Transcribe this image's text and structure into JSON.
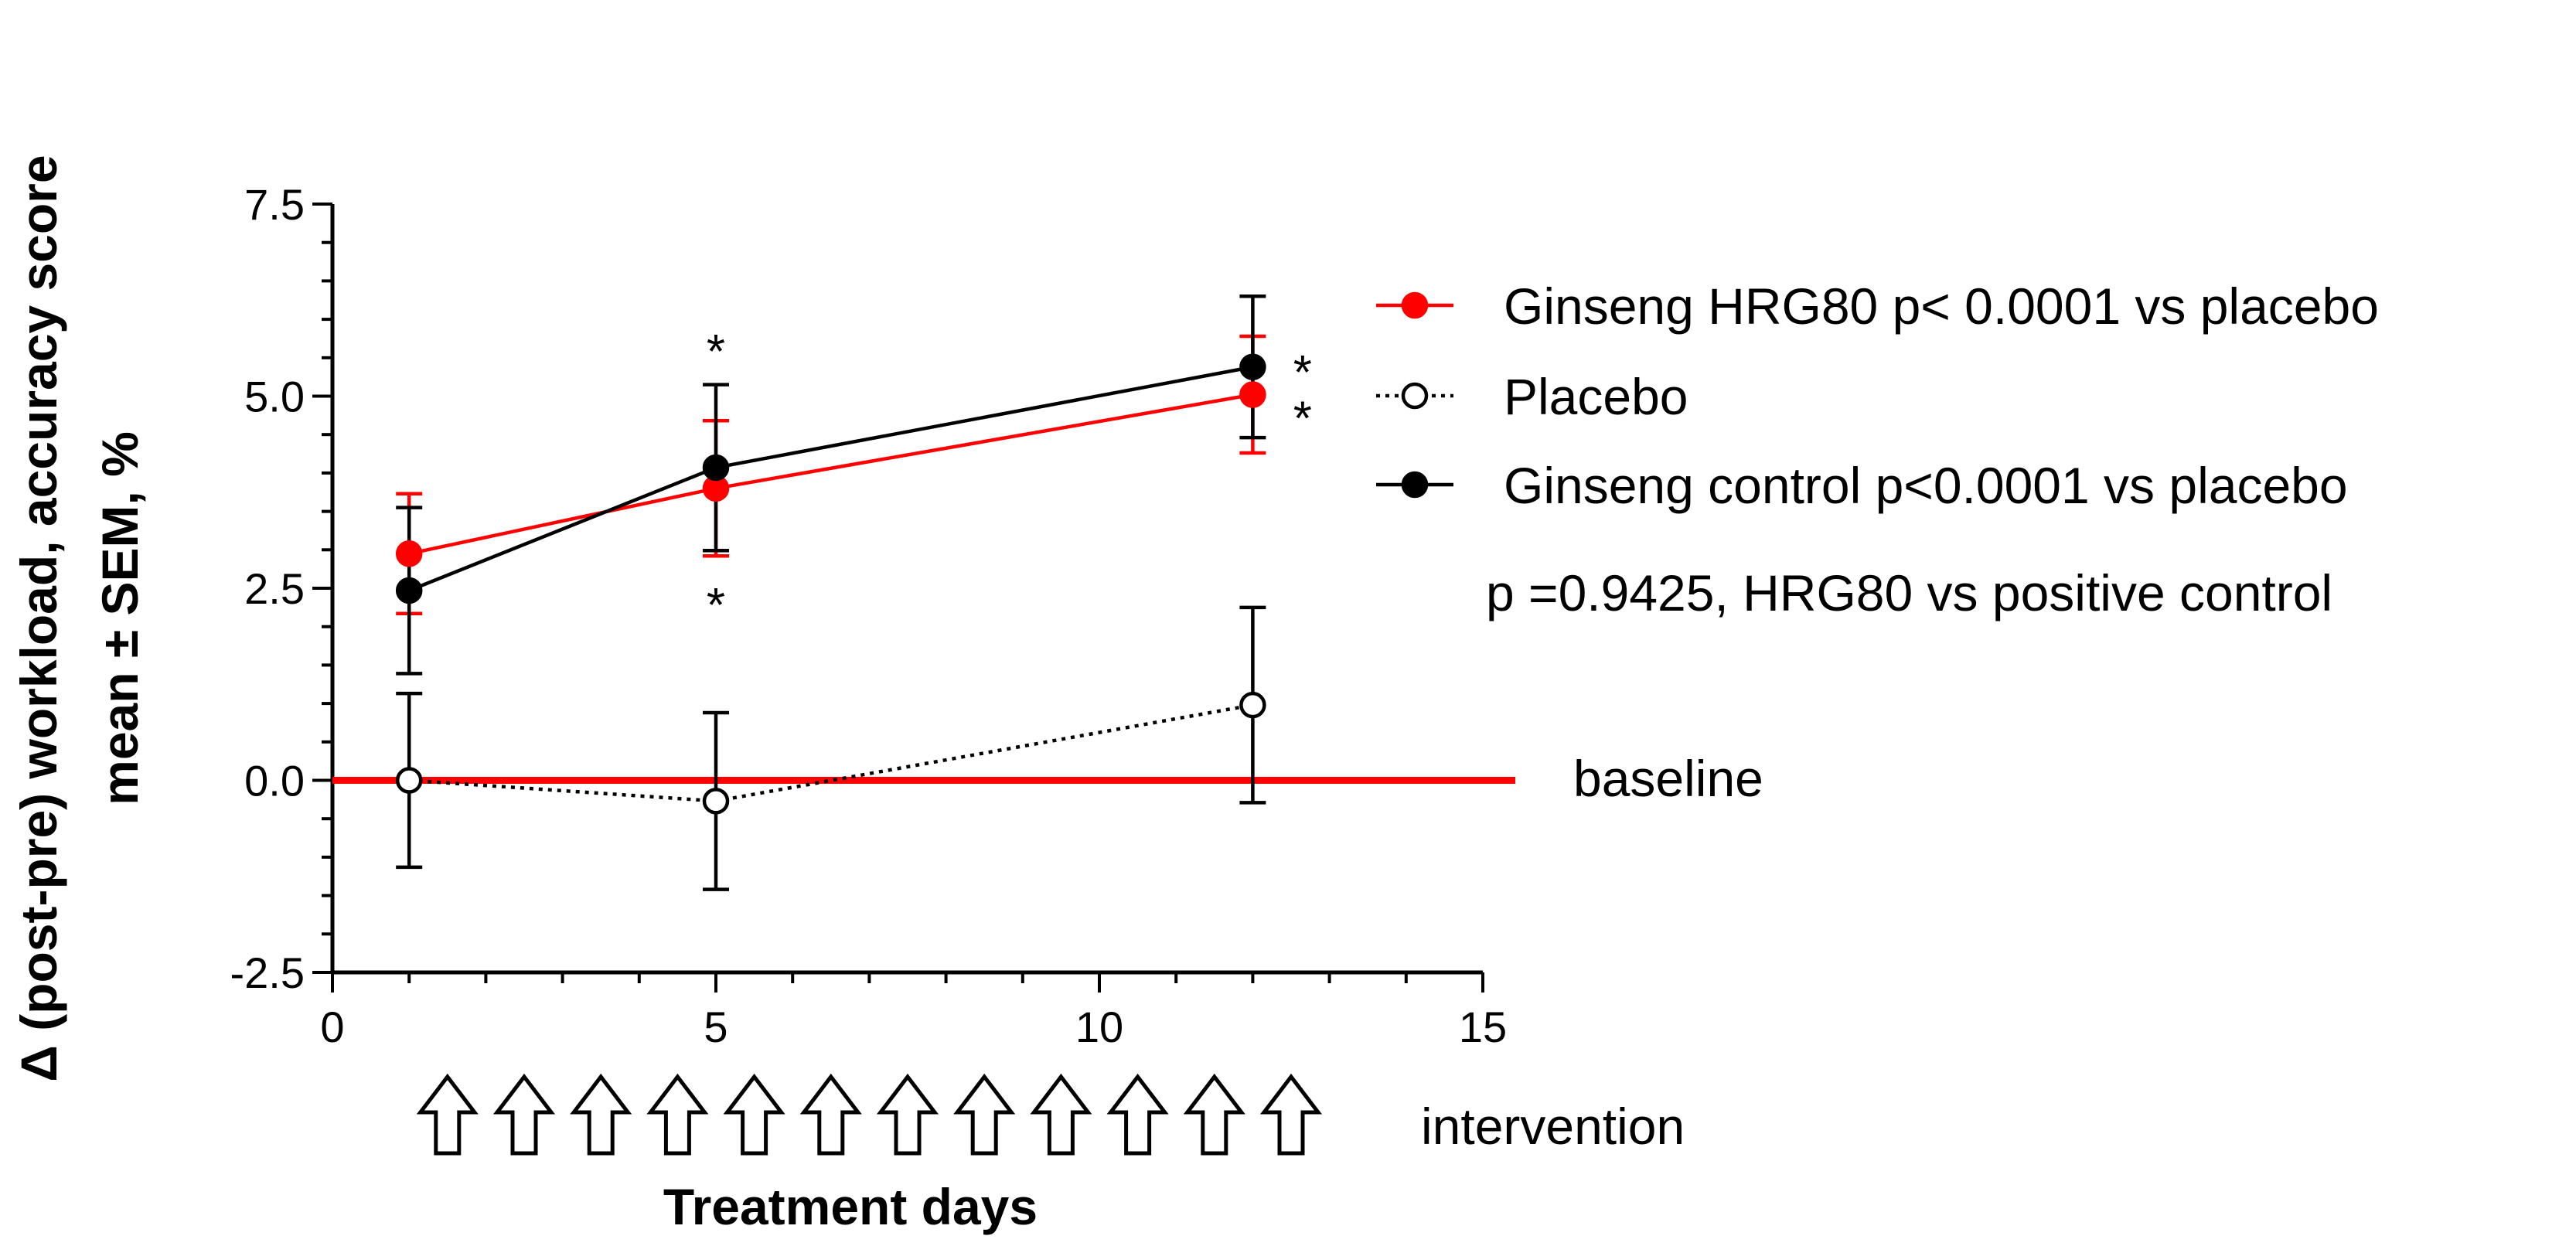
{
  "chart_data": {
    "type": "line",
    "xlabel": "Treatment days",
    "ylabel_line1": "Δ (post-pre) workload, accuracy score",
    "ylabel_line2": "mean ± SEM, %",
    "xlim": [
      0,
      15
    ],
    "ylim": [
      -2.5,
      7.5
    ],
    "xticks": [
      0,
      5,
      10,
      15
    ],
    "xtick_labels": [
      "0",
      "5",
      "10",
      "15"
    ],
    "yticks": [
      -2.5,
      0.0,
      2.5,
      5.0,
      7.5
    ],
    "ytick_labels": [
      "-2.5",
      "0.0",
      "2.5",
      "5.0",
      "7.5"
    ],
    "series": [
      {
        "name": "Ginseng HRG80",
        "legend_label": "Ginseng HRG80 p< 0.0001 vs placebo",
        "color": "#ff0000",
        "marker": "filled",
        "line_style": "solid",
        "x": [
          1,
          5,
          12
        ],
        "y": [
          2.95,
          3.8,
          5.02
        ],
        "err": [
          0.78,
          0.88,
          0.76
        ]
      },
      {
        "name": "Placebo",
        "legend_label": "Placebo",
        "color": "#000000",
        "marker": "open",
        "line_style": "dotted",
        "x": [
          1,
          5,
          12
        ],
        "y": [
          0.0,
          -0.27,
          0.98
        ],
        "err": [
          1.13,
          1.15,
          1.27
        ]
      },
      {
        "name": "Ginseng control",
        "legend_label": "Ginseng control  p<0.0001 vs placebo",
        "color": "#000000",
        "marker": "filled",
        "line_style": "solid",
        "x": [
          1,
          5,
          12
        ],
        "y": [
          2.47,
          4.07,
          5.38
        ],
        "err": [
          1.08,
          1.08,
          0.92
        ]
      }
    ],
    "annotations": {
      "comparison_text": "p =0.9425, HRG80 vs positive control",
      "baseline_label": "baseline",
      "baseline_value": 0,
      "baseline_color": "#ff0000",
      "intervention_label": "intervention",
      "intervention_days": [
        1.5,
        2.5,
        3.5,
        4.5,
        5.5,
        6.5,
        7.5,
        8.5,
        9.5,
        10.5,
        11.5,
        12.5
      ],
      "significance_marks": [
        {
          "text": "*",
          "x": 5,
          "y": 5.75
        },
        {
          "text": "*",
          "x": 5,
          "y": 2.45
        },
        {
          "text": "*",
          "x": 12.65,
          "y": 5.48
        },
        {
          "text": "*",
          "x": 12.65,
          "y": 4.88
        }
      ]
    },
    "legend_position": "right"
  }
}
